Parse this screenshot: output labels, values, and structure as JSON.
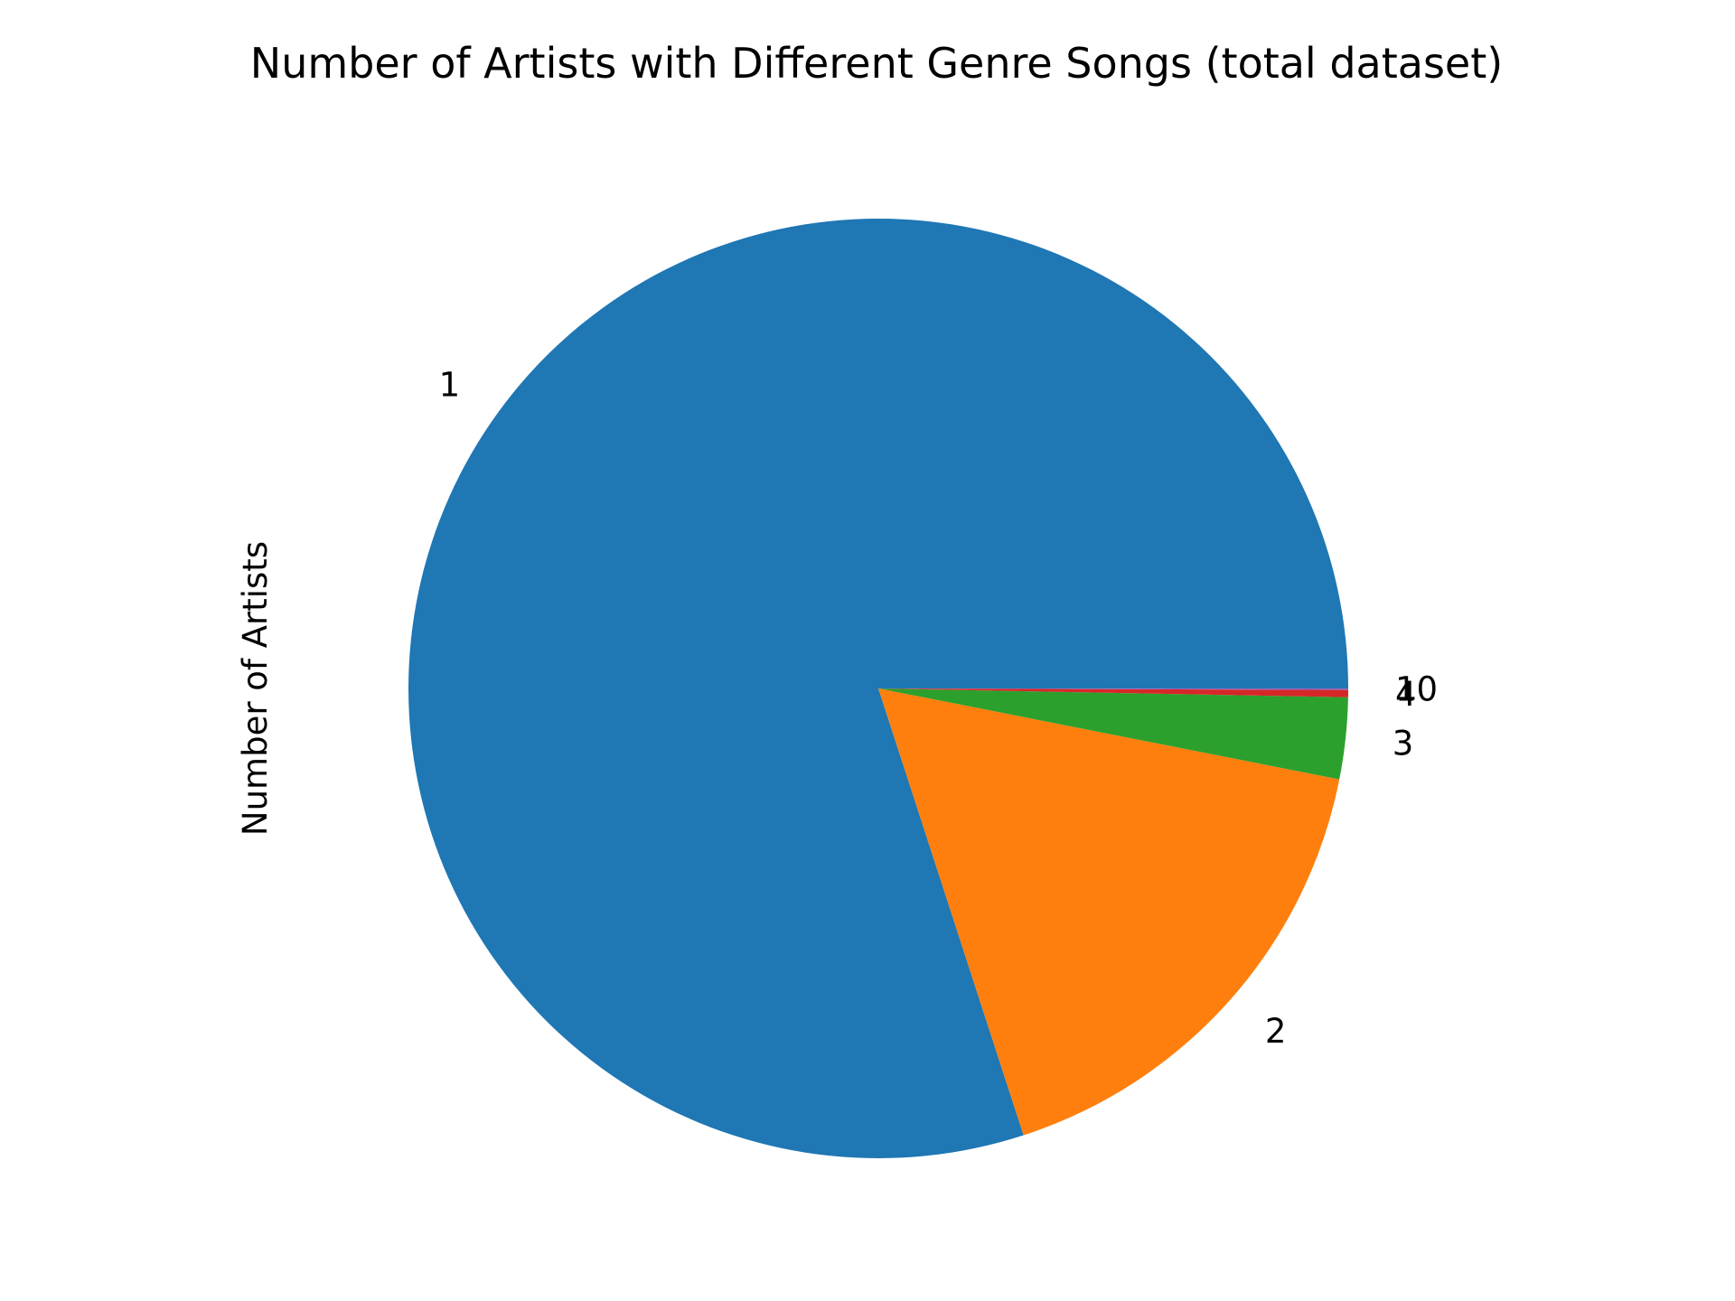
{
  "chart_data": {
    "type": "pie",
    "title": "Number of Artists with Different Genre Songs (total dataset)",
    "ylabel": "Number of Artists",
    "start_angle_deg": 0,
    "direction": "counterclockwise",
    "legend": "none",
    "slices": [
      {
        "label": "1",
        "value": 80.0,
        "color": "#1f77b4"
      },
      {
        "label": "2",
        "value": 16.9,
        "color": "#ff7f0e"
      },
      {
        "label": "3",
        "value": 2.8,
        "color": "#2ca02c"
      },
      {
        "label": "4",
        "value": 0.25,
        "color": "#d62728"
      },
      {
        "label": "10",
        "value": 0.05,
        "color": "#9467bd"
      }
    ]
  }
}
